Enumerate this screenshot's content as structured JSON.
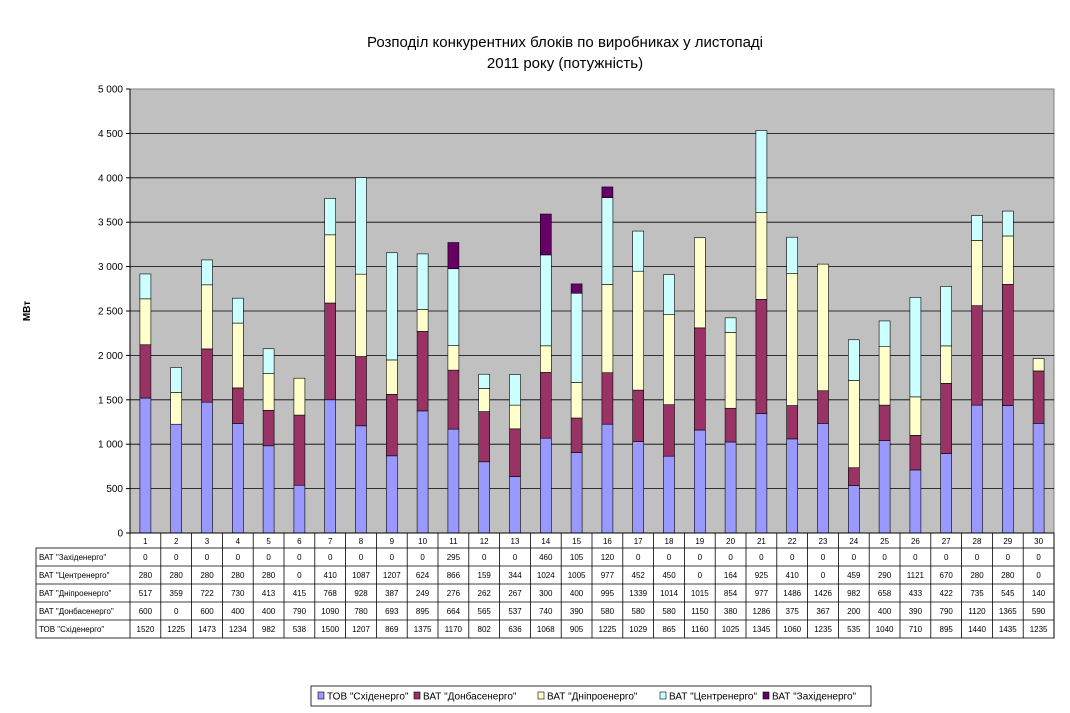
{
  "chart_data": {
    "type": "bar",
    "stacked": true,
    "title": [
      "Розподіл конкурентних блоків по виробниках у листопаді",
      "2011 року (потужність)"
    ],
    "ylabel": "МВт",
    "ylim": [
      0,
      5000
    ],
    "yticks": [
      "0",
      "500",
      "1 000",
      "1 500",
      "2 000",
      "2 500",
      "3 000",
      "3 500",
      "4 000",
      "4 500",
      "5 000"
    ],
    "grid": true,
    "legend_position": "bottom",
    "categories": [
      "1",
      "2",
      "3",
      "4",
      "5",
      "6",
      "7",
      "8",
      "9",
      "10",
      "11",
      "12",
      "13",
      "14",
      "15",
      "16",
      "17",
      "18",
      "19",
      "20",
      "21",
      "22",
      "23",
      "24",
      "25",
      "26",
      "27",
      "28",
      "29",
      "30"
    ],
    "series": [
      {
        "name": "ТОВ \"Східенерго\"",
        "color": "#9999ff",
        "values": [
          1520,
          1225,
          1473,
          1234,
          982,
          538,
          1500,
          1207,
          869,
          1375,
          1170,
          802,
          636,
          1068,
          905,
          1225,
          1029,
          865,
          1160,
          1025,
          1345,
          1060,
          1235,
          535,
          1040,
          710,
          895,
          1440,
          1435,
          1235
        ]
      },
      {
        "name": "ВАТ \"Донбасенерго\"",
        "color": "#993366",
        "values": [
          600,
          0,
          600,
          400,
          400,
          790,
          1090,
          780,
          693,
          895,
          664,
          565,
          537,
          740,
          390,
          580,
          580,
          580,
          1150,
          380,
          1286,
          375,
          367,
          200,
          400,
          390,
          790,
          1120,
          1365,
          590
        ]
      },
      {
        "name": "ВАТ \"Дніпроенерго\"",
        "color": "#ffffcc",
        "values": [
          517,
          359,
          722,
          730,
          413,
          415,
          768,
          928,
          387,
          249,
          276,
          262,
          267,
          300,
          400,
          995,
          1339,
          1014,
          1015,
          854,
          977,
          1486,
          1426,
          982,
          658,
          433,
          422,
          735,
          545,
          140
        ]
      },
      {
        "name": "ВАТ \"Центренерго\"",
        "color": "#ccffff",
        "values": [
          280,
          280,
          280,
          280,
          280,
          0,
          410,
          1087,
          1207,
          624,
          866,
          159,
          344,
          1024,
          1005,
          977,
          452,
          450,
          0,
          164,
          925,
          410,
          0,
          459,
          290,
          1121,
          670,
          280,
          280,
          0
        ]
      },
      {
        "name": "ВАТ \"Західенерго\"",
        "color": "#660066",
        "values": [
          0,
          0,
          0,
          0,
          0,
          0,
          0,
          0,
          0,
          0,
          295,
          0,
          0,
          460,
          105,
          120,
          0,
          0,
          0,
          0,
          0,
          0,
          0,
          0,
          0,
          0,
          0,
          0,
          0,
          0
        ]
      }
    ],
    "table_order": [
      4,
      3,
      2,
      1,
      0
    ],
    "legend_order": [
      0,
      1,
      2,
      3,
      4
    ]
  }
}
